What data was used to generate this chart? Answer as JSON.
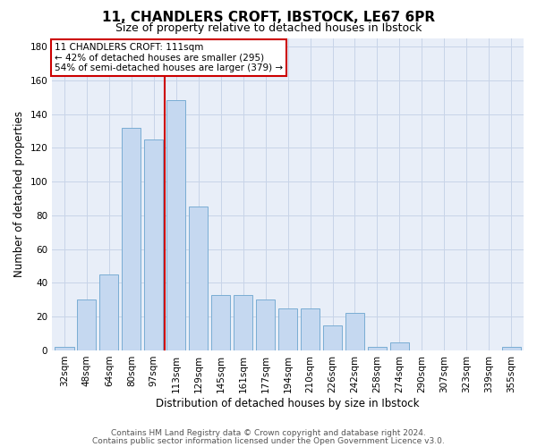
{
  "title": "11, CHANDLERS CROFT, IBSTOCK, LE67 6PR",
  "subtitle": "Size of property relative to detached houses in Ibstock",
  "xlabel": "Distribution of detached houses by size in Ibstock",
  "ylabel": "Number of detached properties",
  "footnote1": "Contains HM Land Registry data © Crown copyright and database right 2024.",
  "footnote2": "Contains public sector information licensed under the Open Government Licence v3.0.",
  "bar_labels": [
    "32sqm",
    "48sqm",
    "64sqm",
    "80sqm",
    "97sqm",
    "113sqm",
    "129sqm",
    "145sqm",
    "161sqm",
    "177sqm",
    "194sqm",
    "210sqm",
    "226sqm",
    "242sqm",
    "258sqm",
    "274sqm",
    "290sqm",
    "307sqm",
    "323sqm",
    "339sqm",
    "355sqm"
  ],
  "bar_values": [
    2,
    30,
    45,
    132,
    125,
    148,
    85,
    33,
    33,
    30,
    25,
    25,
    15,
    22,
    2,
    5,
    0,
    0,
    0,
    0,
    2
  ],
  "bar_color": "#c5d8f0",
  "bar_edge_color": "#7aadd4",
  "ylim": [
    0,
    185
  ],
  "yticks": [
    0,
    20,
    40,
    60,
    80,
    100,
    120,
    140,
    160,
    180
  ],
  "red_line_index": 5,
  "annotation_line1": "11 CHANDLERS CROFT: 111sqm",
  "annotation_line2": "← 42% of detached houses are smaller (295)",
  "annotation_line3": "54% of semi-detached houses are larger (379) →",
  "annotation_box_color": "#ffffff",
  "annotation_box_edge_color": "#cc0000",
  "red_line_color": "#cc0000",
  "grid_color": "#c8d4e8",
  "bg_color": "#e8eef8",
  "title_fontsize": 11,
  "subtitle_fontsize": 9,
  "xlabel_fontsize": 8.5,
  "ylabel_fontsize": 8.5,
  "tick_fontsize": 7.5,
  "annot_fontsize": 7.5,
  "footnote_fontsize": 6.5
}
